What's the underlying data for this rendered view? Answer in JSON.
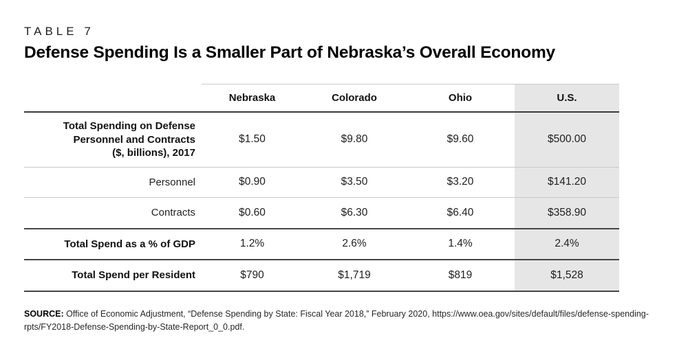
{
  "header": {
    "kicker": "TABLE 7",
    "title": "Defense Spending Is a Smaller Part of Nebraska’s Overall Economy"
  },
  "chart_data": {
    "type": "table",
    "title": "Defense Spending Is a Smaller Part of Nebraska’s Overall Economy",
    "columns": [
      "",
      "Nebraska",
      "Colorado",
      "Ohio",
      "U.S."
    ],
    "highlighted_column": "U.S.",
    "rows": [
      {
        "label": "Total Spending on Defense Personnel and Contracts ($, billions), 2017",
        "sub": false,
        "values": [
          "$1.50",
          "$9.80",
          "$9.60",
          "$500.00"
        ]
      },
      {
        "label": "Personnel",
        "sub": true,
        "values": [
          "$0.90",
          "$3.50",
          "$3.20",
          "$141.20"
        ]
      },
      {
        "label": "Contracts",
        "sub": true,
        "values": [
          "$0.60",
          "$6.30",
          "$6.40",
          "$358.90"
        ]
      },
      {
        "label": "Total Spend as a % of GDP",
        "sub": false,
        "values": [
          "1.2%",
          "2.6%",
          "1.4%",
          "2.4%"
        ]
      },
      {
        "label": "Total Spend per Resident",
        "sub": false,
        "values": [
          "$790",
          "$1,719",
          "$819",
          "$1,528"
        ]
      }
    ]
  },
  "colors": {
    "highlight_column_bg": "#e6e6e6",
    "rule_dark": "#454545",
    "rule_light": "#c9c9c9",
    "text": "#1a1a1a"
  },
  "source": {
    "label": "SOURCE:",
    "text": " Office of Economic Adjustment, “Defense Spending by State: Fiscal Year 2018,” February 2020, https://www.oea.gov/sites/default/files/defense-spending-rpts/FY2018-Defense-Spending-by-State-Report_0_0.pdf."
  }
}
